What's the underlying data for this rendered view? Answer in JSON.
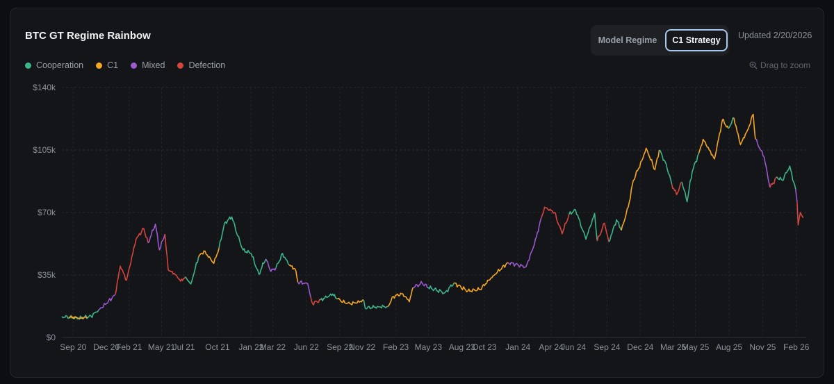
{
  "header": {
    "title": "BTC GT Regime Rainbow",
    "model_regime_label": "Model Regime",
    "c1_strategy_label": "C1 Strategy",
    "updated": "Updated 2/20/2026"
  },
  "zoom_hint": "Drag to zoom",
  "colors": {
    "Cooperation": "#3db58a",
    "C1": "#f5a623",
    "Mixed": "#9b59d0",
    "Defection": "#d6453d"
  },
  "chart_data": {
    "type": "line",
    "title": "BTC GT Regime Rainbow",
    "xlabel": "",
    "ylabel": "",
    "ylim": [
      0,
      140000
    ],
    "y_ticks": [
      "$0",
      "$35k",
      "$70k",
      "$105k",
      "$140k"
    ],
    "y_tick_values": [
      0,
      35000,
      70000,
      105000,
      140000
    ],
    "x_range": [
      "2020-08-01",
      "2026-02-28"
    ],
    "x_ticks": [
      "Sep 20",
      "Dec 20",
      "Feb 21",
      "May 21",
      "Jul 21",
      "Oct 21",
      "Jan 22",
      "Mar 22",
      "Jun 22",
      "Sep 22",
      "Nov 22",
      "Feb 23",
      "May 23",
      "Aug 23",
      "Oct 23",
      "Jan 24",
      "Apr 24",
      "Jun 24",
      "Sep 24",
      "Dec 24",
      "Mar 25",
      "May 25",
      "Aug 25",
      "Nov 25",
      "Feb 26"
    ],
    "x_tick_dates": [
      "2020-09-01",
      "2020-12-01",
      "2021-02-01",
      "2021-05-01",
      "2021-07-01",
      "2021-10-01",
      "2022-01-01",
      "2022-03-01",
      "2022-06-01",
      "2022-09-01",
      "2022-11-01",
      "2023-02-01",
      "2023-05-01",
      "2023-08-01",
      "2023-10-01",
      "2024-01-01",
      "2024-04-01",
      "2024-06-01",
      "2024-09-01",
      "2024-12-01",
      "2025-03-01",
      "2025-05-01",
      "2025-08-01",
      "2025-11-01",
      "2026-02-01"
    ],
    "grid": true,
    "legend_position": "top-left",
    "series": [
      {
        "name": "Cooperation",
        "points": [
          [
            "2020-08-01",
            11800
          ],
          [
            "2020-09-15",
            10700
          ],
          [
            "2020-10-20",
            11900
          ],
          [
            "2020-11-10",
            15500
          ]
        ]
      },
      {
        "name": "C1",
        "points": [
          [
            "2020-08-20",
            11500
          ],
          [
            "2020-09-20",
            10900
          ],
          [
            "2020-10-10",
            11300
          ]
        ]
      },
      {
        "name": "Mixed",
        "points": [
          [
            "2020-11-10",
            15500
          ],
          [
            "2020-12-01",
            19000
          ],
          [
            "2020-12-25",
            24000
          ]
        ]
      },
      {
        "name": "Defection",
        "points": [
          [
            "2020-12-25",
            24000
          ],
          [
            "2021-01-08",
            40000
          ],
          [
            "2021-01-25",
            32000
          ],
          [
            "2021-02-20",
            55000
          ],
          [
            "2021-03-13",
            61000
          ],
          [
            "2021-03-25",
            53000
          ]
        ]
      },
      {
        "name": "Mixed",
        "points": [
          [
            "2021-03-25",
            53000
          ],
          [
            "2021-04-14",
            63500
          ],
          [
            "2021-04-25",
            49000
          ],
          [
            "2021-05-10",
            58000
          ]
        ]
      },
      {
        "name": "Defection",
        "points": [
          [
            "2021-05-10",
            58000
          ],
          [
            "2021-05-19",
            38000
          ],
          [
            "2021-06-10",
            35000
          ],
          [
            "2021-06-22",
            31500
          ],
          [
            "2021-07-05",
            34000
          ]
        ]
      },
      {
        "name": "Cooperation",
        "points": [
          [
            "2021-07-05",
            34000
          ],
          [
            "2021-07-20",
            30000
          ],
          [
            "2021-08-10",
            45000
          ]
        ]
      },
      {
        "name": "C1",
        "points": [
          [
            "2021-08-10",
            45000
          ],
          [
            "2021-08-25",
            48500
          ],
          [
            "2021-09-21",
            41500
          ],
          [
            "2021-10-05",
            50000
          ]
        ]
      },
      {
        "name": "Cooperation",
        "points": [
          [
            "2021-10-05",
            50000
          ],
          [
            "2021-10-20",
            64000
          ],
          [
            "2021-11-09",
            67500
          ],
          [
            "2021-11-25",
            57000
          ],
          [
            "2021-12-10",
            49000
          ],
          [
            "2022-01-01",
            47000
          ],
          [
            "2022-01-22",
            35500
          ],
          [
            "2022-02-10",
            44000
          ]
        ]
      },
      {
        "name": "Mixed",
        "points": [
          [
            "2022-02-10",
            44000
          ],
          [
            "2022-02-24",
            37000
          ],
          [
            "2022-03-10",
            39000
          ]
        ]
      },
      {
        "name": "Cooperation",
        "points": [
          [
            "2022-03-10",
            39000
          ],
          [
            "2022-03-28",
            47000
          ],
          [
            "2022-04-15",
            40500
          ]
        ]
      },
      {
        "name": "C1",
        "points": [
          [
            "2022-04-15",
            40500
          ],
          [
            "2022-05-01",
            38500
          ],
          [
            "2022-05-09",
            31000
          ]
        ]
      },
      {
        "name": "Mixed",
        "points": [
          [
            "2022-05-09",
            31000
          ],
          [
            "2022-06-05",
            30000
          ],
          [
            "2022-06-13",
            22500
          ]
        ]
      },
      {
        "name": "Defection",
        "points": [
          [
            "2022-06-13",
            22500
          ],
          [
            "2022-06-18",
            19000
          ],
          [
            "2022-07-10",
            21000
          ]
        ]
      },
      {
        "name": "Cooperation",
        "points": [
          [
            "2022-07-10",
            21000
          ],
          [
            "2022-08-12",
            24300
          ],
          [
            "2022-08-25",
            21500
          ]
        ]
      },
      {
        "name": "C1",
        "points": [
          [
            "2022-08-25",
            21500
          ],
          [
            "2022-09-20",
            19000
          ],
          [
            "2022-10-15",
            19200
          ],
          [
            "2022-11-05",
            21000
          ]
        ]
      },
      {
        "name": "Cooperation",
        "points": [
          [
            "2022-11-05",
            21000
          ],
          [
            "2022-11-09",
            16500
          ],
          [
            "2022-12-15",
            17200
          ],
          [
            "2023-01-10",
            17300
          ]
        ]
      },
      {
        "name": "C1",
        "points": [
          [
            "2023-01-10",
            17300
          ],
          [
            "2023-01-25",
            23000
          ],
          [
            "2023-02-20",
            24500
          ],
          [
            "2023-03-10",
            20000
          ],
          [
            "2023-03-20",
            28000
          ]
        ]
      },
      {
        "name": "Mixed",
        "points": [
          [
            "2023-03-20",
            28000
          ],
          [
            "2023-04-14",
            30400
          ],
          [
            "2023-05-01",
            28000
          ]
        ]
      },
      {
        "name": "Cooperation",
        "points": [
          [
            "2023-05-01",
            28000
          ],
          [
            "2023-06-15",
            25000
          ],
          [
            "2023-07-10",
            30500
          ]
        ]
      },
      {
        "name": "C1",
        "points": [
          [
            "2023-07-10",
            30500
          ],
          [
            "2023-08-17",
            26000
          ],
          [
            "2023-09-20",
            27000
          ],
          [
            "2023-10-25",
            34500
          ],
          [
            "2023-12-05",
            42000
          ]
        ]
      },
      {
        "name": "Mixed",
        "points": [
          [
            "2023-12-05",
            42000
          ],
          [
            "2024-01-23",
            39500
          ],
          [
            "2024-02-15",
            52000
          ],
          [
            "2024-03-05",
            67000
          ]
        ]
      },
      {
        "name": "Defection",
        "points": [
          [
            "2024-03-05",
            67000
          ],
          [
            "2024-03-14",
            73000
          ],
          [
            "2024-04-10",
            70000
          ],
          [
            "2024-05-01",
            58000
          ],
          [
            "2024-05-20",
            69000
          ]
        ]
      },
      {
        "name": "Cooperation",
        "points": [
          [
            "2024-05-20",
            69000
          ],
          [
            "2024-06-07",
            71500
          ],
          [
            "2024-07-05",
            55000
          ],
          [
            "2024-07-29",
            69500
          ],
          [
            "2024-08-05",
            54000
          ]
        ]
      },
      {
        "name": "Defection",
        "points": [
          [
            "2024-08-05",
            54000
          ],
          [
            "2024-08-25",
            64000
          ],
          [
            "2024-09-06",
            53500
          ]
        ]
      },
      {
        "name": "Cooperation",
        "points": [
          [
            "2024-09-06",
            53500
          ],
          [
            "2024-09-27",
            66000
          ],
          [
            "2024-10-10",
            60000
          ]
        ]
      },
      {
        "name": "C1",
        "points": [
          [
            "2024-10-10",
            60000
          ],
          [
            "2024-10-29",
            73000
          ],
          [
            "2024-11-12",
            88000
          ],
          [
            "2024-12-05",
            99000
          ],
          [
            "2024-12-17",
            106000
          ],
          [
            "2025-01-10",
            94000
          ],
          [
            "2025-01-22",
            105000
          ]
        ]
      },
      {
        "name": "Cooperation",
        "points": [
          [
            "2025-01-22",
            105000
          ],
          [
            "2025-02-10",
            97000
          ],
          [
            "2025-02-25",
            86000
          ]
        ]
      },
      {
        "name": "Defection",
        "points": [
          [
            "2025-02-25",
            86000
          ],
          [
            "2025-03-10",
            80000
          ],
          [
            "2025-03-25",
            87000
          ]
        ]
      },
      {
        "name": "Cooperation",
        "points": [
          [
            "2025-03-25",
            87000
          ],
          [
            "2025-04-08",
            76000
          ],
          [
            "2025-04-22",
            93000
          ],
          [
            "2025-05-10",
            103000
          ]
        ]
      },
      {
        "name": "C1",
        "points": [
          [
            "2025-05-10",
            103000
          ],
          [
            "2025-05-22",
            111000
          ],
          [
            "2025-06-22",
            100000
          ],
          [
            "2025-07-14",
            122000
          ],
          [
            "2025-07-30",
            117000
          ]
        ]
      },
      {
        "name": "Cooperation",
        "points": [
          [
            "2025-07-30",
            117000
          ],
          [
            "2025-08-14",
            123000
          ]
        ]
      },
      {
        "name": "C1",
        "points": [
          [
            "2025-08-14",
            123000
          ],
          [
            "2025-09-01",
            108000
          ],
          [
            "2025-09-20",
            116000
          ],
          [
            "2025-10-06",
            125000
          ],
          [
            "2025-10-12",
            111000
          ]
        ]
      },
      {
        "name": "Mixed",
        "points": [
          [
            "2025-10-12",
            111000
          ],
          [
            "2025-11-05",
            101000
          ],
          [
            "2025-11-21",
            84000
          ]
        ]
      },
      {
        "name": "Defection",
        "points": [
          [
            "2025-11-21",
            84000
          ],
          [
            "2025-12-10",
            90000
          ]
        ]
      },
      {
        "name": "Cooperation",
        "points": [
          [
            "2025-12-10",
            90000
          ],
          [
            "2025-12-25",
            88000
          ],
          [
            "2026-01-14",
            96000
          ],
          [
            "2026-01-30",
            83000
          ]
        ]
      },
      {
        "name": "Mixed",
        "points": [
          [
            "2026-01-30",
            83000
          ],
          [
            "2026-02-03",
            76000
          ]
        ]
      },
      {
        "name": "Defection",
        "points": [
          [
            "2026-02-03",
            76000
          ],
          [
            "2026-02-06",
            63000
          ],
          [
            "2026-02-12",
            70000
          ],
          [
            "2026-02-20",
            67000
          ]
        ]
      }
    ]
  }
}
